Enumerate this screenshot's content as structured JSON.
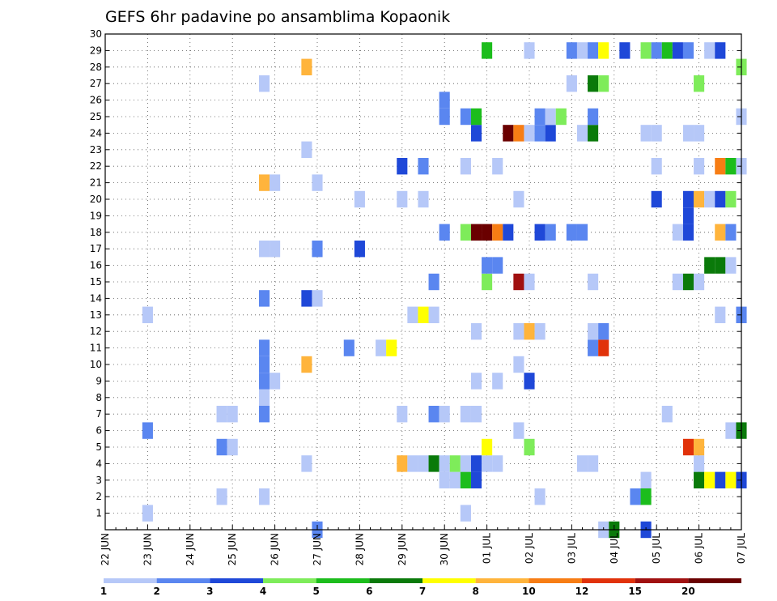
{
  "chart_data": {
    "type": "heatmap",
    "title": "GEFS 6hr padavine po ansamblima Kopaonik",
    "xlabel": "",
    "ylabel": "",
    "x_tick_labels": [
      "22 JUN",
      "23 JUN",
      "24 JUN",
      "25 JUN",
      "26 JUN",
      "27 JUN",
      "28 JUN",
      "29 JUN",
      "30 JUN",
      "01 JUL",
      "02 JUL",
      "03 JUL",
      "04 JUL",
      "05 JUL",
      "06 JUL",
      "07 JUL"
    ],
    "x_range_days": [
      0,
      15
    ],
    "y_tick_labels": [
      "1",
      "2",
      "3",
      "4",
      "5",
      "6",
      "7",
      "8",
      "9",
      "10",
      "11",
      "12",
      "13",
      "14",
      "15",
      "16",
      "17",
      "18",
      "19",
      "20",
      "21",
      "22",
      "23",
      "24",
      "25",
      "26",
      "27",
      "28",
      "29",
      "30"
    ],
    "y_range": [
      0,
      30
    ],
    "grid": true,
    "legend_placement": "bottom",
    "legend_labels": [
      "1",
      "2",
      "3",
      "4",
      "5",
      "6",
      "7",
      "8",
      "10",
      "12",
      "15",
      "20"
    ],
    "legend_colors": [
      "#b6c8f8",
      "#5a86f0",
      "#1f48d8",
      "#7eec5a",
      "#1cbd1c",
      "#0a7a0a",
      "#ffff00",
      "#ffb43c",
      "#f77d14",
      "#e1320a",
      "#a01010",
      "#6a0000"
    ],
    "cells": [
      {
        "x": 1.0,
        "y": 1,
        "v": 1
      },
      {
        "x": 8.5,
        "y": 1,
        "v": 1
      },
      {
        "x": 2.75,
        "y": 2,
        "v": 1
      },
      {
        "x": 3.75,
        "y": 2,
        "v": 1
      },
      {
        "x": 10.25,
        "y": 2,
        "v": 1
      },
      {
        "x": 12.5,
        "y": 2,
        "v": 2
      },
      {
        "x": 12.75,
        "y": 2,
        "v": 5
      },
      {
        "x": 8.0,
        "y": 3,
        "v": 1
      },
      {
        "x": 8.25,
        "y": 3,
        "v": 1
      },
      {
        "x": 8.5,
        "y": 3,
        "v": 5
      },
      {
        "x": 8.75,
        "y": 3,
        "v": 3
      },
      {
        "x": 12.75,
        "y": 3,
        "v": 1
      },
      {
        "x": 14.0,
        "y": 3,
        "v": 6
      },
      {
        "x": 14.25,
        "y": 3,
        "v": 7
      },
      {
        "x": 14.5,
        "y": 3,
        "v": 3
      },
      {
        "x": 14.75,
        "y": 3,
        "v": 7
      },
      {
        "x": 15.0,
        "y": 3,
        "v": 3
      },
      {
        "x": 7.0,
        "y": 4,
        "v": 8
      },
      {
        "x": 7.25,
        "y": 4,
        "v": 1
      },
      {
        "x": 7.5,
        "y": 4,
        "v": 1
      },
      {
        "x": 7.75,
        "y": 4,
        "v": 6
      },
      {
        "x": 8.0,
        "y": 4,
        "v": 1
      },
      {
        "x": 8.25,
        "y": 4,
        "v": 4
      },
      {
        "x": 8.5,
        "y": 4,
        "v": 1
      },
      {
        "x": 8.75,
        "y": 4,
        "v": 3
      },
      {
        "x": 9.0,
        "y": 4,
        "v": 1
      },
      {
        "x": 9.25,
        "y": 4,
        "v": 1
      },
      {
        "x": 11.25,
        "y": 4,
        "v": 1
      },
      {
        "x": 11.5,
        "y": 4,
        "v": 1
      },
      {
        "x": 4.75,
        "y": 4,
        "v": 1
      },
      {
        "x": 14.0,
        "y": 4,
        "v": 1
      },
      {
        "x": 2.75,
        "y": 5,
        "v": 2
      },
      {
        "x": 3.0,
        "y": 5,
        "v": 1
      },
      {
        "x": 9.0,
        "y": 5,
        "v": 7
      },
      {
        "x": 10.0,
        "y": 5,
        "v": 4
      },
      {
        "x": 13.75,
        "y": 5,
        "v": 12
      },
      {
        "x": 14.0,
        "y": 5,
        "v": 8
      },
      {
        "x": 1.0,
        "y": 6,
        "v": 2
      },
      {
        "x": 9.75,
        "y": 6,
        "v": 1
      },
      {
        "x": 14.75,
        "y": 6,
        "v": 1
      },
      {
        "x": 15.0,
        "y": 6,
        "v": 6
      },
      {
        "x": 2.75,
        "y": 7,
        "v": 1
      },
      {
        "x": 3.0,
        "y": 7,
        "v": 1
      },
      {
        "x": 3.75,
        "y": 7,
        "v": 2
      },
      {
        "x": 7.0,
        "y": 7,
        "v": 1
      },
      {
        "x": 7.75,
        "y": 7,
        "v": 2
      },
      {
        "x": 8.0,
        "y": 7,
        "v": 1
      },
      {
        "x": 8.5,
        "y": 7,
        "v": 1
      },
      {
        "x": 8.75,
        "y": 7,
        "v": 1
      },
      {
        "x": 13.25,
        "y": 7,
        "v": 1
      },
      {
        "x": 3.75,
        "y": 8,
        "v": 1
      },
      {
        "x": 3.75,
        "y": 9,
        "v": 2
      },
      {
        "x": 4.0,
        "y": 9,
        "v": 1
      },
      {
        "x": 8.75,
        "y": 9,
        "v": 1
      },
      {
        "x": 9.25,
        "y": 9,
        "v": 1
      },
      {
        "x": 10.0,
        "y": 9,
        "v": 3
      },
      {
        "x": 3.75,
        "y": 10,
        "v": 2
      },
      {
        "x": 4.75,
        "y": 10,
        "v": 8
      },
      {
        "x": 9.75,
        "y": 10,
        "v": 1
      },
      {
        "x": 3.75,
        "y": 11,
        "v": 2
      },
      {
        "x": 5.75,
        "y": 11,
        "v": 2
      },
      {
        "x": 6.5,
        "y": 11,
        "v": 1
      },
      {
        "x": 6.75,
        "y": 11,
        "v": 7
      },
      {
        "x": 11.5,
        "y": 11,
        "v": 2
      },
      {
        "x": 11.75,
        "y": 11,
        "v": 12
      },
      {
        "x": 8.75,
        "y": 12,
        "v": 1
      },
      {
        "x": 9.75,
        "y": 12,
        "v": 1
      },
      {
        "x": 10.0,
        "y": 12,
        "v": 8
      },
      {
        "x": 10.25,
        "y": 12,
        "v": 1
      },
      {
        "x": 11.5,
        "y": 12,
        "v": 1
      },
      {
        "x": 11.75,
        "y": 12,
        "v": 2
      },
      {
        "x": 1.0,
        "y": 13,
        "v": 1
      },
      {
        "x": 7.25,
        "y": 13,
        "v": 1
      },
      {
        "x": 7.5,
        "y": 13,
        "v": 7
      },
      {
        "x": 7.75,
        "y": 13,
        "v": 1
      },
      {
        "x": 14.5,
        "y": 13,
        "v": 1
      },
      {
        "x": 15.0,
        "y": 13,
        "v": 2
      },
      {
        "x": 3.75,
        "y": 14,
        "v": 2
      },
      {
        "x": 4.75,
        "y": 14,
        "v": 3
      },
      {
        "x": 5.0,
        "y": 14,
        "v": 1
      },
      {
        "x": 7.75,
        "y": 15,
        "v": 2
      },
      {
        "x": 9.0,
        "y": 15,
        "v": 4
      },
      {
        "x": 9.75,
        "y": 15,
        "v": 15
      },
      {
        "x": 10.0,
        "y": 15,
        "v": 1
      },
      {
        "x": 11.5,
        "y": 15,
        "v": 1
      },
      {
        "x": 13.5,
        "y": 15,
        "v": 1
      },
      {
        "x": 13.75,
        "y": 15,
        "v": 6
      },
      {
        "x": 14.0,
        "y": 15,
        "v": 1
      },
      {
        "x": 9.0,
        "y": 16,
        "v": 2
      },
      {
        "x": 9.25,
        "y": 16,
        "v": 2
      },
      {
        "x": 14.25,
        "y": 16,
        "v": 6
      },
      {
        "x": 14.5,
        "y": 16,
        "v": 6
      },
      {
        "x": 14.75,
        "y": 16,
        "v": 1
      },
      {
        "x": 3.75,
        "y": 17,
        "v": 1
      },
      {
        "x": 4.0,
        "y": 17,
        "v": 1
      },
      {
        "x": 5.0,
        "y": 17,
        "v": 2
      },
      {
        "x": 6.0,
        "y": 17,
        "v": 3
      },
      {
        "x": 8.0,
        "y": 18,
        "v": 2
      },
      {
        "x": 8.5,
        "y": 18,
        "v": 4
      },
      {
        "x": 8.75,
        "y": 18,
        "v": 20
      },
      {
        "x": 9.0,
        "y": 18,
        "v": 20
      },
      {
        "x": 9.25,
        "y": 18,
        "v": 10
      },
      {
        "x": 9.5,
        "y": 18,
        "v": 3
      },
      {
        "x": 10.25,
        "y": 18,
        "v": 3
      },
      {
        "x": 10.5,
        "y": 18,
        "v": 2
      },
      {
        "x": 11.0,
        "y": 18,
        "v": 2
      },
      {
        "x": 11.25,
        "y": 18,
        "v": 2
      },
      {
        "x": 13.5,
        "y": 18,
        "v": 1
      },
      {
        "x": 13.75,
        "y": 18,
        "v": 3
      },
      {
        "x": 14.5,
        "y": 18,
        "v": 8
      },
      {
        "x": 14.75,
        "y": 18,
        "v": 2
      },
      {
        "x": 13.75,
        "y": 19,
        "v": 3
      },
      {
        "x": 7.0,
        "y": 20,
        "v": 1
      },
      {
        "x": 7.5,
        "y": 20,
        "v": 1
      },
      {
        "x": 9.75,
        "y": 20,
        "v": 1
      },
      {
        "x": 13.0,
        "y": 20,
        "v": 3
      },
      {
        "x": 13.75,
        "y": 20,
        "v": 3
      },
      {
        "x": 14.0,
        "y": 20,
        "v": 8
      },
      {
        "x": 14.25,
        "y": 20,
        "v": 1
      },
      {
        "x": 14.5,
        "y": 20,
        "v": 3
      },
      {
        "x": 14.75,
        "y": 20,
        "v": 4
      },
      {
        "x": 6.0,
        "y": 20,
        "v": 1
      },
      {
        "x": 3.75,
        "y": 21,
        "v": 8
      },
      {
        "x": 4.0,
        "y": 21,
        "v": 1
      },
      {
        "x": 5.0,
        "y": 21,
        "v": 1
      },
      {
        "x": 7.0,
        "y": 22,
        "v": 3
      },
      {
        "x": 7.5,
        "y": 22,
        "v": 2
      },
      {
        "x": 8.5,
        "y": 22,
        "v": 1
      },
      {
        "x": 9.25,
        "y": 22,
        "v": 1
      },
      {
        "x": 13.0,
        "y": 22,
        "v": 1
      },
      {
        "x": 14.0,
        "y": 22,
        "v": 1
      },
      {
        "x": 14.5,
        "y": 22,
        "v": 10
      },
      {
        "x": 14.75,
        "y": 22,
        "v": 5
      },
      {
        "x": 15.0,
        "y": 22,
        "v": 1
      },
      {
        "x": 4.75,
        "y": 23,
        "v": 1
      },
      {
        "x": 8.75,
        "y": 24,
        "v": 3
      },
      {
        "x": 9.5,
        "y": 24,
        "v": 20
      },
      {
        "x": 9.75,
        "y": 24,
        "v": 10
      },
      {
        "x": 10.0,
        "y": 24,
        "v": 1
      },
      {
        "x": 10.25,
        "y": 24,
        "v": 2
      },
      {
        "x": 10.5,
        "y": 24,
        "v": 3
      },
      {
        "x": 11.25,
        "y": 24,
        "v": 1
      },
      {
        "x": 11.5,
        "y": 24,
        "v": 6
      },
      {
        "x": 12.75,
        "y": 24,
        "v": 1
      },
      {
        "x": 13.0,
        "y": 24,
        "v": 1
      },
      {
        "x": 13.75,
        "y": 24,
        "v": 1
      },
      {
        "x": 14.0,
        "y": 24,
        "v": 1
      },
      {
        "x": 8.0,
        "y": 25,
        "v": 2
      },
      {
        "x": 8.5,
        "y": 25,
        "v": 2
      },
      {
        "x": 8.75,
        "y": 25,
        "v": 5
      },
      {
        "x": 10.25,
        "y": 25,
        "v": 2
      },
      {
        "x": 10.5,
        "y": 25,
        "v": 1
      },
      {
        "x": 10.75,
        "y": 25,
        "v": 4
      },
      {
        "x": 11.5,
        "y": 25,
        "v": 2
      },
      {
        "x": 15.0,
        "y": 25,
        "v": 1
      },
      {
        "x": 8.0,
        "y": 26,
        "v": 2
      },
      {
        "x": 3.75,
        "y": 27,
        "v": 1
      },
      {
        "x": 11.0,
        "y": 27,
        "v": 1
      },
      {
        "x": 11.5,
        "y": 27,
        "v": 6
      },
      {
        "x": 11.75,
        "y": 27,
        "v": 4
      },
      {
        "x": 14.0,
        "y": 27,
        "v": 4
      },
      {
        "x": 4.75,
        "y": 28,
        "v": 8
      },
      {
        "x": 15.0,
        "y": 28,
        "v": 4
      },
      {
        "x": 9.0,
        "y": 29,
        "v": 5
      },
      {
        "x": 10.0,
        "y": 29,
        "v": 1
      },
      {
        "x": 11.0,
        "y": 29,
        "v": 2
      },
      {
        "x": 11.25,
        "y": 29,
        "v": 1
      },
      {
        "x": 11.5,
        "y": 29,
        "v": 2
      },
      {
        "x": 11.75,
        "y": 29,
        "v": 7
      },
      {
        "x": 12.25,
        "y": 29,
        "v": 3
      },
      {
        "x": 12.75,
        "y": 29,
        "v": 4
      },
      {
        "x": 13.0,
        "y": 29,
        "v": 2
      },
      {
        "x": 13.25,
        "y": 29,
        "v": 5
      },
      {
        "x": 13.5,
        "y": 29,
        "v": 3
      },
      {
        "x": 13.75,
        "y": 29,
        "v": 2
      },
      {
        "x": 14.25,
        "y": 29,
        "v": 1
      },
      {
        "x": 14.5,
        "y": 29,
        "v": 3
      },
      {
        "x": 5.0,
        "y": 0,
        "v": 2
      },
      {
        "x": 11.75,
        "y": 0,
        "v": 1
      },
      {
        "x": 12.0,
        "y": 0,
        "v": 6
      },
      {
        "x": 12.75,
        "y": 0,
        "v": 3
      }
    ]
  }
}
